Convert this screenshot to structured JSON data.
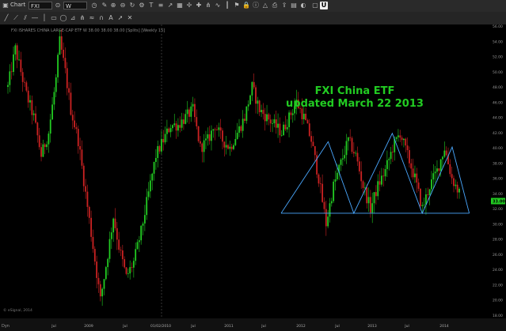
{
  "window": {
    "title": "Chart",
    "symbol": "FXI",
    "interval": "W"
  },
  "chart_info": "FXI ISHARES CHINA LARGE-CAP ETF W 38.00 38.00 38.00 [Splits] [Weekly 15]",
  "annotation": {
    "line1": "FXI China ETF",
    "line2": "updated March 22 2013"
  },
  "footer": {
    "left": "Dyn",
    "watermark": "© eSignal, 2014"
  },
  "current_price_tag": "33.00",
  "colors": {
    "up": "#22cc22",
    "down": "#cc2222",
    "pattern": "#4aa8ff",
    "title": "#22cc22"
  },
  "chart_data": {
    "type": "candlestick",
    "yaxis": {
      "min": 18,
      "max": 56,
      "ticks": [
        "56.00",
        "54.00",
        "52.00",
        "50.00",
        "48.00",
        "46.00",
        "44.00",
        "42.00",
        "40.00",
        "38.00",
        "36.00",
        "34.00",
        "32.00",
        "30.00",
        "28.00",
        "26.00",
        "24.00",
        "22.00",
        "20.00",
        "18.00"
      ]
    },
    "xaxis": {
      "labels": [
        "Jul",
        "2009",
        "Jul",
        "01/02/2010",
        "Jul",
        "2011",
        "Jul",
        "2012",
        "Jul",
        "2013",
        "Jul",
        "2014"
      ]
    },
    "close_path": [
      [
        0,
        48
      ],
      [
        4,
        53
      ],
      [
        7,
        50
      ],
      [
        10,
        47
      ],
      [
        14,
        44
      ],
      [
        18,
        39
      ],
      [
        22,
        42
      ],
      [
        26,
        49
      ],
      [
        28,
        54
      ],
      [
        31,
        50
      ],
      [
        34,
        45
      ],
      [
        38,
        41
      ],
      [
        42,
        34
      ],
      [
        46,
        27
      ],
      [
        50,
        20
      ],
      [
        54,
        26
      ],
      [
        57,
        31
      ],
      [
        60,
        27
      ],
      [
        64,
        23
      ],
      [
        68,
        25
      ],
      [
        72,
        29
      ],
      [
        76,
        34
      ],
      [
        80,
        39
      ],
      [
        84,
        41
      ],
      [
        88,
        43
      ],
      [
        92,
        43
      ],
      [
        96,
        44
      ],
      [
        100,
        45
      ],
      [
        104,
        40
      ],
      [
        108,
        41
      ],
      [
        112,
        43
      ],
      [
        116,
        41
      ],
      [
        120,
        40
      ],
      [
        124,
        42
      ],
      [
        128,
        44
      ],
      [
        132,
        48
      ],
      [
        136,
        45
      ],
      [
        140,
        44
      ],
      [
        144,
        43
      ],
      [
        148,
        42
      ],
      [
        152,
        44
      ],
      [
        156,
        46
      ],
      [
        160,
        44
      ],
      [
        164,
        41
      ],
      [
        168,
        36
      ],
      [
        172,
        30
      ],
      [
        176,
        35
      ],
      [
        180,
        38
      ],
      [
        184,
        41
      ],
      [
        188,
        39
      ],
      [
        192,
        35
      ],
      [
        196,
        32
      ],
      [
        200,
        35
      ],
      [
        204,
        37
      ],
      [
        208,
        40
      ],
      [
        212,
        42
      ],
      [
        216,
        39
      ],
      [
        220,
        36
      ],
      [
        224,
        32
      ],
      [
        228,
        35
      ],
      [
        232,
        37
      ],
      [
        236,
        40
      ],
      [
        240,
        36
      ],
      [
        244,
        34
      ]
    ],
    "pattern_lines": [
      [
        [
          0,
          31.4
        ],
        [
          44,
          31.4
        ]
      ],
      [
        [
          0,
          31.4
        ],
        [
          11,
          40.8
        ],
        [
          17,
          31.4
        ],
        [
          26,
          41.9
        ],
        [
          33,
          31.4
        ],
        [
          40,
          40.1
        ],
        [
          44,
          31.4
        ]
      ]
    ]
  }
}
